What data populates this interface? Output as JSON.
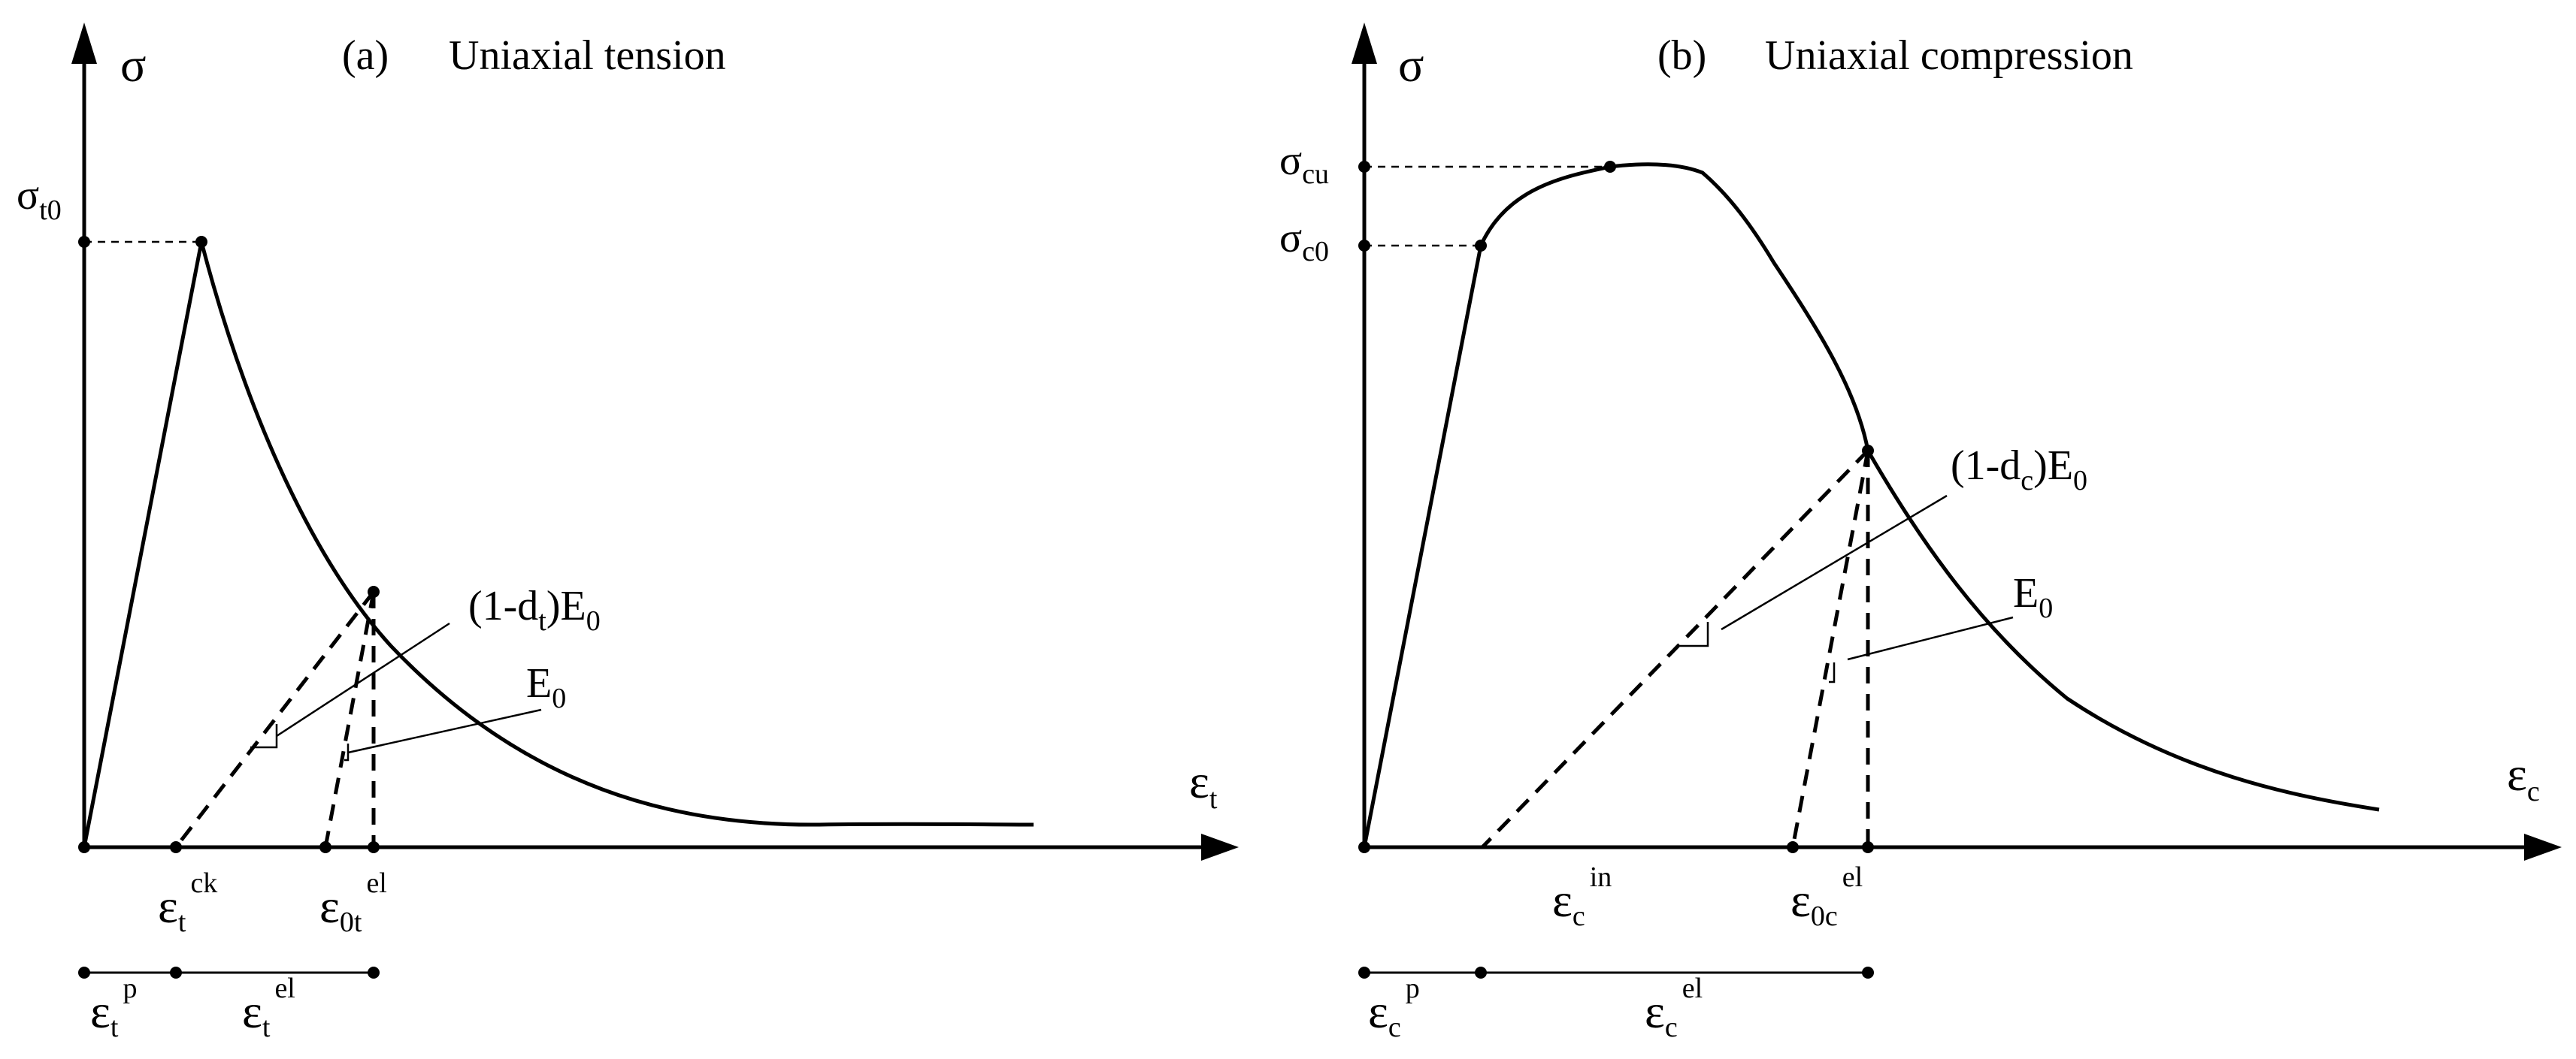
{
  "panels": {
    "tension": {
      "title_tag": "(a)",
      "title": "Uniaxial tension",
      "y_symbol": "σ",
      "x_symbol": "ε",
      "x_symbol_sub": "t",
      "peak_symbol": "σ",
      "peak_sub": "t0",
      "unload_label_a": "(1-d",
      "unload_label_a_sub": "t",
      "unload_label_b": ")E",
      "unload_label_b_sub": "0",
      "elastic_label": "E",
      "elastic_label_sub": "0",
      "tick_ck_base": "ε",
      "tick_ck_sub": "t",
      "tick_ck_sup": "ck",
      "tick_0t_base": "ε",
      "tick_0t_sub": "0t",
      "tick_0t_sup": "el",
      "seg_p_base": "ε",
      "seg_p_sub": "t",
      "seg_p_sup": "p",
      "seg_el_base": "ε",
      "seg_el_sub": "t",
      "seg_el_sup": "el"
    },
    "compression": {
      "title_tag": "(b)",
      "title": "Uniaxial compression",
      "y_symbol": "σ",
      "x_symbol": "ε",
      "x_symbol_sub": "c",
      "cu_symbol": "σ",
      "cu_sub": "cu",
      "c0_symbol": "σ",
      "c0_sub": "c0",
      "unload_label_a": "(1-d",
      "unload_label_a_sub": "c",
      "unload_label_b": ")E",
      "unload_label_b_sub": "0",
      "elastic_label": "E",
      "elastic_label_sub": "0",
      "tick_in_base": "ε",
      "tick_in_sub": "c",
      "tick_in_sup": "in",
      "tick_0c_base": "ε",
      "tick_0c_sub": "0c",
      "tick_0c_sup": "el",
      "seg_p_base": "ε",
      "seg_p_sub": "c",
      "seg_p_sup": "p",
      "seg_el_base": "ε",
      "seg_el_sub": "c",
      "seg_el_sup": "el"
    }
  }
}
